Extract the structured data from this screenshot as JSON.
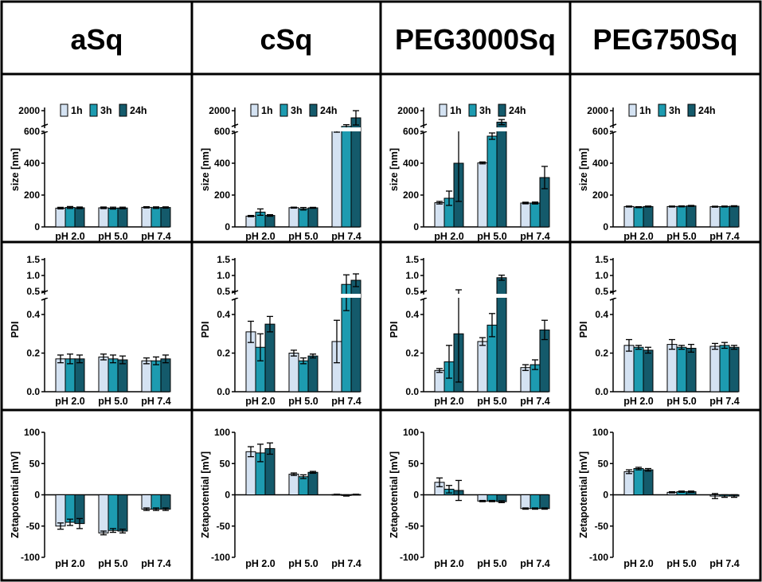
{
  "colors": {
    "1h": "#d4e2f2",
    "3h": "#1d9bb0",
    "24h": "#145a6b"
  },
  "legend": [
    "1h",
    "3h",
    "24h"
  ],
  "columns": [
    "aSq",
    "cSq",
    "PEG3000Sq",
    "PEG750Sq"
  ],
  "categories": [
    "pH 2.0",
    "pH 5.0",
    "pH 7.4"
  ],
  "rows": [
    {
      "id": "size",
      "ylabel": "size [nm]",
      "ticks_lower": [
        "200",
        "400",
        "600"
      ],
      "tick_upper": "2000",
      "tick_zero": "0"
    },
    {
      "id": "pdi",
      "ylabel": "PDI",
      "ticks_lower": [
        "0.0",
        "0.2",
        "0.4"
      ],
      "ticks_upper": [
        "0.5",
        "1.0",
        "1.5"
      ]
    },
    {
      "id": "zeta",
      "ylabel": "Zetapotential [mV]",
      "ticks": [
        "-100",
        "-50",
        "0",
        "50",
        "100"
      ]
    }
  ],
  "chart_data": [
    {
      "type": "bar",
      "metric": "size",
      "formulation": "aSq",
      "ylabel": "size [nm]",
      "categories": [
        "pH 2.0",
        "pH 5.0",
        "pH 7.4"
      ],
      "series": [
        {
          "name": "1h",
          "values": [
            118,
            120,
            123
          ],
          "errors": [
            5,
            5,
            4
          ]
        },
        {
          "name": "3h",
          "values": [
            122,
            118,
            121
          ],
          "errors": [
            6,
            6,
            5
          ]
        },
        {
          "name": "24h",
          "values": [
            120,
            119,
            122
          ],
          "errors": [
            5,
            5,
            4
          ]
        }
      ]
    },
    {
      "type": "bar",
      "metric": "size",
      "formulation": "cSq",
      "ylabel": "size [nm]",
      "categories": [
        "pH 2.0",
        "pH 5.0",
        "pH 7.4"
      ],
      "series": [
        {
          "name": "1h",
          "values": [
            68,
            121,
            620
          ],
          "errors": [
            4,
            3,
            25
          ]
        },
        {
          "name": "3h",
          "values": [
            93,
            114,
            900
          ],
          "errors": [
            20,
            8,
            120
          ]
        },
        {
          "name": "24h",
          "values": [
            72,
            120,
            1500
          ],
          "errors": [
            5,
            3,
            500
          ]
        }
      ]
    },
    {
      "type": "bar",
      "metric": "size",
      "formulation": "PEG3000Sq",
      "ylabel": "size [nm]",
      "categories": [
        "pH 2.0",
        "pH 5.0",
        "pH 7.4"
      ],
      "series": [
        {
          "name": "1h",
          "values": [
            152,
            402,
            150
          ],
          "errors": [
            8,
            6,
            5
          ]
        },
        {
          "name": "3h",
          "values": [
            180,
            570,
            150
          ],
          "errors": [
            45,
            20,
            6
          ]
        },
        {
          "name": "24h",
          "values": [
            400,
            1200,
            310
          ],
          "errors": [
            240,
            180,
            70
          ]
        }
      ]
    },
    {
      "type": "bar",
      "metric": "size",
      "formulation": "PEG750Sq",
      "ylabel": "size [nm]",
      "categories": [
        "pH 2.0",
        "pH 5.0",
        "pH 7.4"
      ],
      "series": [
        {
          "name": "1h",
          "values": [
            128,
            128,
            127
          ],
          "errors": [
            3,
            3,
            3
          ]
        },
        {
          "name": "3h",
          "values": [
            124,
            129,
            128
          ],
          "errors": [
            3,
            3,
            3
          ]
        },
        {
          "name": "24h",
          "values": [
            128,
            132,
            130
          ],
          "errors": [
            3,
            3,
            3
          ]
        }
      ]
    },
    {
      "type": "bar",
      "metric": "pdi",
      "formulation": "aSq",
      "ylabel": "PDI",
      "categories": [
        "pH 2.0",
        "pH 5.0",
        "pH 7.4"
      ],
      "series": [
        {
          "name": "1h",
          "values": [
            0.17,
            0.18,
            0.16
          ],
          "errors": [
            0.02,
            0.015,
            0.015
          ]
        },
        {
          "name": "3h",
          "values": [
            0.17,
            0.17,
            0.16
          ],
          "errors": [
            0.025,
            0.02,
            0.02
          ]
        },
        {
          "name": "24h",
          "values": [
            0.17,
            0.165,
            0.17
          ],
          "errors": [
            0.02,
            0.02,
            0.02
          ]
        }
      ]
    },
    {
      "type": "bar",
      "metric": "pdi",
      "formulation": "cSq",
      "ylabel": "PDI",
      "categories": [
        "pH 2.0",
        "pH 5.0",
        "pH 7.4"
      ],
      "series": [
        {
          "name": "1h",
          "values": [
            0.31,
            0.2,
            0.26
          ],
          "errors": [
            0.055,
            0.015,
            0.11
          ]
        },
        {
          "name": "3h",
          "values": [
            0.23,
            0.16,
            0.72
          ],
          "errors": [
            0.07,
            0.015,
            0.3
          ]
        },
        {
          "name": "24h",
          "values": [
            0.35,
            0.185,
            0.85
          ],
          "errors": [
            0.04,
            0.01,
            0.2
          ]
        }
      ]
    },
    {
      "type": "bar",
      "metric": "pdi",
      "formulation": "PEG3000Sq",
      "ylabel": "PDI",
      "categories": [
        "pH 2.0",
        "pH 5.0",
        "pH 7.4"
      ],
      "series": [
        {
          "name": "1h",
          "values": [
            0.11,
            0.26,
            0.125
          ],
          "errors": [
            0.01,
            0.02,
            0.015
          ]
        },
        {
          "name": "3h",
          "values": [
            0.155,
            0.345,
            0.14
          ],
          "errors": [
            0.085,
            0.06,
            0.025
          ]
        },
        {
          "name": "24h",
          "values": [
            0.3,
            0.93,
            0.32
          ],
          "errors": [
            0.25,
            0.08,
            0.05
          ]
        }
      ]
    },
    {
      "type": "bar",
      "metric": "pdi",
      "formulation": "PEG750Sq",
      "ylabel": "PDI",
      "categories": [
        "pH 2.0",
        "pH 5.0",
        "pH 7.4"
      ],
      "series": [
        {
          "name": "1h",
          "values": [
            0.24,
            0.245,
            0.235
          ],
          "errors": [
            0.03,
            0.025,
            0.015
          ]
        },
        {
          "name": "3h",
          "values": [
            0.23,
            0.23,
            0.24
          ],
          "errors": [
            0.01,
            0.01,
            0.015
          ]
        },
        {
          "name": "24h",
          "values": [
            0.215,
            0.225,
            0.23
          ],
          "errors": [
            0.015,
            0.02,
            0.01
          ]
        }
      ]
    },
    {
      "type": "bar",
      "metric": "zeta",
      "formulation": "aSq",
      "ylabel": "Zetapotential [mV]",
      "categories": [
        "pH 2.0",
        "pH 5.0",
        "pH 7.4"
      ],
      "ylim": [
        -100,
        100
      ],
      "series": [
        {
          "name": "1h",
          "values": [
            -50,
            -61,
            -23
          ],
          "errors": [
            5,
            3,
            2
          ]
        },
        {
          "name": "3h",
          "values": [
            -44,
            -57,
            -23
          ],
          "errors": [
            5,
            3,
            2
          ]
        },
        {
          "name": "24h",
          "values": [
            -46,
            -58,
            -23
          ],
          "errors": [
            8,
            3,
            2
          ]
        }
      ]
    },
    {
      "type": "bar",
      "metric": "zeta",
      "formulation": "cSq",
      "ylabel": "Zetapotential [mV]",
      "categories": [
        "pH 2.0",
        "pH 5.0",
        "pH 7.4"
      ],
      "ylim": [
        -100,
        100
      ],
      "series": [
        {
          "name": "1h",
          "values": [
            69,
            33,
            0.5
          ],
          "errors": [
            8,
            2,
            0.5
          ]
        },
        {
          "name": "3h",
          "values": [
            67,
            29,
            -1
          ],
          "errors": [
            14,
            3,
            1
          ]
        },
        {
          "name": "24h",
          "values": [
            74,
            36,
            0.5
          ],
          "errors": [
            9,
            1.5,
            0.5
          ]
        }
      ]
    },
    {
      "type": "bar",
      "metric": "zeta",
      "formulation": "PEG3000Sq",
      "ylabel": "Zetapotential [mV]",
      "categories": [
        "pH 2.0",
        "pH 5.0",
        "pH 7.4"
      ],
      "ylim": [
        -100,
        100
      ],
      "series": [
        {
          "name": "1h",
          "values": [
            20,
            -10,
            -22
          ],
          "errors": [
            7,
            1,
            1
          ]
        },
        {
          "name": "3h",
          "values": [
            9,
            -10,
            -22
          ],
          "errors": [
            6,
            1,
            1
          ]
        },
        {
          "name": "24h",
          "values": [
            7,
            -11,
            -22
          ],
          "errors": [
            16,
            1.5,
            1
          ]
        }
      ]
    },
    {
      "type": "bar",
      "metric": "zeta",
      "formulation": "PEG750Sq",
      "ylabel": "Zetapotential [mV]",
      "categories": [
        "pH 2.0",
        "pH 5.0",
        "pH 7.4"
      ],
      "ylim": [
        -100,
        100
      ],
      "series": [
        {
          "name": "1h",
          "values": [
            37,
            4,
            -2
          ],
          "errors": [
            3,
            1,
            4
          ]
        },
        {
          "name": "3h",
          "values": [
            42,
            5,
            -2
          ],
          "errors": [
            2,
            1,
            2
          ]
        },
        {
          "name": "24h",
          "values": [
            40,
            5,
            -2
          ],
          "errors": [
            2,
            1,
            2
          ]
        }
      ]
    }
  ]
}
